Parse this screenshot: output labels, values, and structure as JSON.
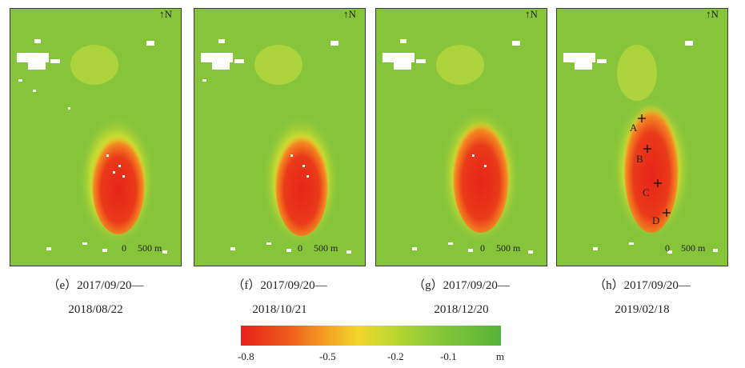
{
  "panels": [
    {
      "id": "e",
      "caption_line1": "（e）2017/09/20—",
      "caption_line2": "2018/08/22",
      "north": "N",
      "scale_zero": "0",
      "scale_label": "500 m"
    },
    {
      "id": "f",
      "caption_line1": "（f）2017/09/20—",
      "caption_line2": "2018/10/21",
      "north": "N",
      "scale_zero": "0",
      "scale_label": "500 m"
    },
    {
      "id": "g",
      "caption_line1": "（g）2017/09/20—",
      "caption_line2": "2018/12/20",
      "north": "N",
      "scale_zero": "0",
      "scale_label": "500 m"
    },
    {
      "id": "h",
      "caption_line1": "（h）2017/09/20—",
      "caption_line2": "2019/02/18",
      "north": "N",
      "scale_zero": "0",
      "scale_label": "500 m",
      "points": [
        "A",
        "B",
        "C",
        "D"
      ]
    }
  ],
  "legend": {
    "ticks": [
      "-0.8",
      "-0.5",
      "-0.2",
      "-0.1"
    ],
    "unit": "m",
    "colors": {
      "min": "#e8201a",
      "mid": "#f2d62a",
      "max": "#56b33a"
    }
  }
}
